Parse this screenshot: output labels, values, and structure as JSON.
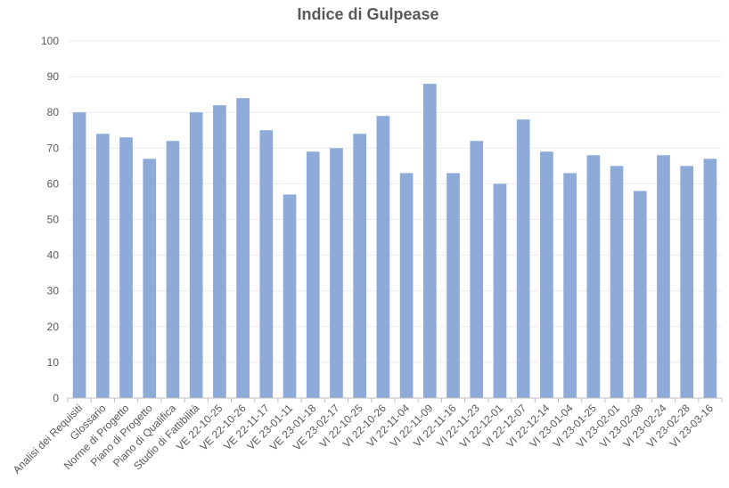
{
  "chart_data": {
    "type": "bar",
    "title": "Indice di Gulpease",
    "xlabel": "",
    "ylabel": "",
    "ylim": [
      0,
      100
    ],
    "yticks": [
      0,
      10,
      20,
      30,
      40,
      50,
      60,
      70,
      80,
      90,
      100
    ],
    "grid": true,
    "legend": "none",
    "bar_color": "#8eaad9",
    "categories": [
      "Analisi dei Requisiti",
      "Glossario",
      "Norme di Progetto",
      "Piano di Progetto",
      "Piano di Qualifica",
      "Studio di Fattibilità",
      "VE 22-10-25",
      "VE 22-10-26",
      "VE 22-11-17",
      "VE 23-01-11",
      "VE 23-01-18",
      "VE 23-02-17",
      "VI 22-10-25",
      "VI 22-10-26",
      "VI 22-11-04",
      "VI 22-11-09",
      "VI 22-11-16",
      "VI 22-11-23",
      "VI 22-12-01",
      "VI 22-12-07",
      "VI 22-12-14",
      "VI 23-01-04",
      "VI 23-01-25",
      "VI 23-02-01",
      "VI 23-02-08",
      "VI 23-02-24",
      "VI 23-02-28",
      "VI 23-03-16"
    ],
    "values": [
      80,
      74,
      73,
      67,
      72,
      80,
      82,
      84,
      75,
      57,
      69,
      70,
      74,
      79,
      63,
      88,
      63,
      72,
      60,
      78,
      69,
      63,
      68,
      65,
      58,
      68,
      65,
      67
    ]
  }
}
